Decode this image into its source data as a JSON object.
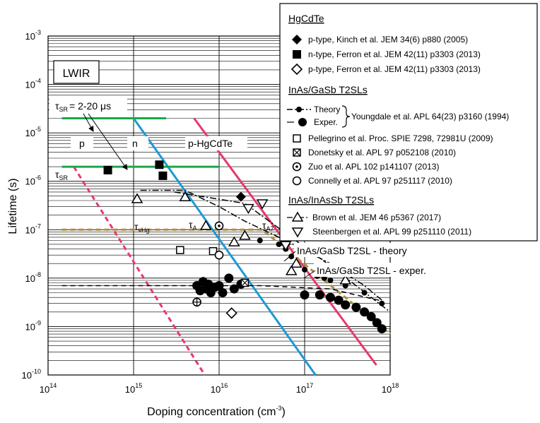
{
  "chart_data": {
    "type": "scatter",
    "title": "",
    "xlabel_main": "Doping concentration (cm",
    "xlabel_sup": "-3",
    "xlabel_close": ")",
    "ylabel": "Lifetime (s)",
    "xscale": "log",
    "yscale": "log",
    "xlim": [
      100000000000000.0,
      1e+18
    ],
    "ylim": [
      1e-10,
      0.001
    ],
    "grid": true,
    "legend_placement": "top-right",
    "x_ticks": [
      {
        "value": 100000000000000.0,
        "base": "10",
        "exp": "14"
      },
      {
        "value": 1000000000000000.0,
        "base": "10",
        "exp": "15"
      },
      {
        "value": 1e+16,
        "base": "10",
        "exp": "16"
      },
      {
        "value": 1e+17,
        "base": "10",
        "exp": "17"
      },
      {
        "value": 1e+18,
        "base": "10",
        "exp": "18"
      }
    ],
    "y_ticks": [
      {
        "value": 1e-10,
        "base": "10",
        "exp": "-10"
      },
      {
        "value": 1e-09,
        "base": "10",
        "exp": "-9"
      },
      {
        "value": 1e-08,
        "base": "10",
        "exp": "-8"
      },
      {
        "value": 1e-07,
        "base": "10",
        "exp": "-7"
      },
      {
        "value": 1e-06,
        "base": "10",
        "exp": "-6"
      },
      {
        "value": 1e-05,
        "base": "10",
        "exp": "-5"
      },
      {
        "value": 0.0001,
        "base": "10",
        "exp": "-4"
      },
      {
        "value": 0.001,
        "base": "10",
        "exp": "-3"
      }
    ],
    "colors": {
      "pink": "#e8386a",
      "blue": "#1b9ad6",
      "green": "#1aa64b",
      "tan": "#b08c3c",
      "black": "#000000"
    },
    "lines": [
      {
        "name": "tau-vHg",
        "color": "#e8386a",
        "style": "dashed",
        "x": [
          200000000000000.0,
          6800000000000000.0
        ],
        "y": [
          2e-06,
          1e-10
        ]
      },
      {
        "name": "tau-A",
        "color": "#1b9ad6",
        "style": "solid",
        "x": [
          1000000000000000.0,
          1.34e+17
        ],
        "y": [
          2e-05,
          1e-10
        ]
      },
      {
        "name": "tau-A7",
        "color": "#e8386a",
        "style": "solid",
        "x": [
          5100000000000000.0,
          6.9e+17
        ],
        "y": [
          2e-05,
          1.6e-10
        ]
      },
      {
        "name": "tau-SR-upper",
        "color": "#1aa64b",
        "style": "solid",
        "x": [
          145000000000000.0,
          2400000000000000.0
        ],
        "y": [
          2e-05,
          2e-05
        ]
      },
      {
        "name": "tau-SR-lower",
        "color": "#1aa64b",
        "style": "solid",
        "x": [
          145000000000000.0,
          1e+16
        ],
        "y": [
          2e-06,
          2e-06
        ]
      },
      {
        "name": "tan-dashed",
        "color": "#b08c3c",
        "style": "dashed",
        "x": [
          145000000000000.0,
          3.2e+16,
          1e+18
        ],
        "y": [
          1e-07,
          1e-07,
          7e-10
        ]
      },
      {
        "name": "black-dashed",
        "color": "#000000",
        "style": "dashed",
        "x": [
          145000000000000.0,
          3e+16,
          2e+17,
          6e+17,
          8e+17
        ],
        "y": [
          7e-09,
          7e-09,
          6e-09,
          3.8e-09,
          3.4e-09
        ]
      },
      {
        "name": "theory",
        "color": "#000000",
        "style": "dashdot",
        "x": [
          1200000000000000.0,
          4000000000000000.0,
          1e+16,
          2e+16,
          6e+16,
          2e+17,
          5e+17,
          8e+17
        ],
        "y": [
          6.5e-07,
          6.5e-07,
          3e-07,
          1.5e-07,
          6e-08,
          2e-08,
          7e-09,
          3.5e-09
        ]
      },
      {
        "name": "theory-2",
        "color": "#000000",
        "style": "dashdot",
        "x": [
          3000000000000000.0,
          2e+16,
          2e+17,
          1e+18
        ],
        "y": [
          6e-07,
          3.5e-07,
          1.8e-08,
          2e-09
        ]
      }
    ],
    "series": [
      {
        "marker": "diamond-filled",
        "points": [
          [
            1.8e+16,
            4.8e-07
          ],
          [
            6e+16,
            5e-08
          ]
        ]
      },
      {
        "marker": "square-filled",
        "points": [
          [
            500000000000000.0,
            1.7e-06
          ],
          [
            2000000000000000.0,
            2.2e-06
          ],
          [
            2200000000000000.0,
            1.3e-06
          ]
        ]
      },
      {
        "marker": "diamond-open",
        "points": [
          [
            1.4e+16,
            1.9e-09
          ]
        ]
      },
      {
        "marker": "dot-filled",
        "points": [
          [
            3e+16,
            6e-08
          ],
          [
            5e+16,
            5e-08
          ],
          [
            6e+16,
            4e-08
          ],
          [
            7e+16,
            2.8e-08
          ],
          [
            1e+17,
            1.5e-08
          ],
          [
            1.4e+17,
            1.1e-08
          ],
          [
            1.7e+17,
            1e-08
          ],
          [
            2e+17,
            9e-09
          ],
          [
            3e+17,
            7e-09
          ],
          [
            5e+17,
            5e-09
          ],
          [
            8e+17,
            3e-09
          ]
        ]
      },
      {
        "marker": "circle-filled",
        "points": [
          [
            5500000000000000.0,
            7e-09
          ],
          [
            6000000000000000.0,
            5.5e-09
          ],
          [
            6500000000000000.0,
            8.5e-09
          ],
          [
            7000000000000000.0,
            6e-09
          ],
          [
            7500000000000000.0,
            7.5e-09
          ],
          [
            8000000000000000.0,
            5e-09
          ],
          [
            9000000000000000.0,
            6.5e-09
          ],
          [
            1e+16,
            7e-09
          ],
          [
            1.1e+16,
            5e-09
          ],
          [
            1.3e+16,
            1e-08
          ],
          [
            1.5e+16,
            6e-09
          ],
          [
            1.8e+16,
            7.5e-09
          ],
          [
            1e+17,
            4.5e-09
          ],
          [
            1.5e+17,
            4.5e-09
          ],
          [
            2e+17,
            4e-09
          ],
          [
            2.5e+17,
            3.5e-09
          ],
          [
            3e+17,
            2.8e-09
          ],
          [
            4e+17,
            2.5e-09
          ],
          [
            5e+17,
            2e-09
          ],
          [
            6e+17,
            1.6e-09
          ],
          [
            7e+17,
            1.2e-09
          ],
          [
            8e+17,
            9e-10
          ]
        ]
      },
      {
        "marker": "square-open",
        "points": [
          [
            3500000000000000.0,
            3.8e-08
          ],
          [
            8500000000000000.0,
            3.6e-08
          ]
        ]
      },
      {
        "marker": "square-cross",
        "points": [
          [
            2e+16,
            8e-09
          ]
        ]
      },
      {
        "marker": "circle-dot",
        "points": [
          [
            1e+16,
            1.2e-07
          ]
        ]
      },
      {
        "marker": "circle-open",
        "points": [
          [
            1e+16,
            3e-08
          ]
        ]
      },
      {
        "marker": "circle-cross",
        "points": [
          [
            5500000000000000.0,
            3.2e-09
          ]
        ]
      },
      {
        "marker": "triangle-up-open",
        "points": [
          [
            1100000000000000.0,
            4.3e-07
          ],
          [
            4000000000000000.0,
            4.7e-07
          ],
          [
            7000000000000000.0,
            1.2e-07
          ],
          [
            1.5e+16,
            5.5e-08
          ],
          [
            2e+16,
            7.5e-08
          ],
          [
            7e+16,
            1.4e-08
          ],
          [
            8e+16,
            2e-08
          ],
          [
            3e+17,
            9e-09
          ]
        ]
      },
      {
        "marker": "triangle-down-open",
        "points": [
          [
            2.2e+16,
            2.8e-07
          ],
          [
            3.2e+16,
            3.5e-07
          ],
          [
            6e+16,
            4.8e-08
          ]
        ]
      }
    ],
    "annotations": {
      "lwir": "LWIR",
      "tau_sr_top_pre": "τ",
      "tau_sr_top_sub": "SR",
      "tau_sr_top_val": "= 2-20 μs",
      "tau_sr_pre": "τ",
      "tau_sr_sub": "SR",
      "p": "p",
      "n": "n",
      "p_hgcdte": "p-HgCdTe",
      "tau_vhg_pre": "τ",
      "tau_vhg_sub": "vHg",
      "tau_a_pre": "τ",
      "tau_a_sub": "A",
      "tau_a7_pre": "τ",
      "tau_a7_sub": "A7",
      "theory_label": "InAs/GaSb T2SL - theory",
      "exper_label": "InAs/GaSb T2SL - exper."
    },
    "legend": {
      "hgcdte_header": "HgCdTe",
      "hgcdte_items": [
        {
          "marker": "diamond-filled",
          "label": "p-type, Kinch et al. JEM 34(6) p880 (2005)"
        },
        {
          "marker": "square-filled",
          "label": "n-type, Ferron et al. JEM 42(11) p3303 (2013)"
        },
        {
          "marker": "diamond-open",
          "label": "p-type, Ferron et al. JEM  42(11) p3303 (2013)"
        }
      ],
      "inas_gasb_header": "InAs/GaSb T2SLs",
      "theory_label": "Theory",
      "exper_label": "Exper.",
      "youngdale_label": "Youngdale et al. APL 64(23) p3160 (1994)",
      "inas_gasb_items": [
        {
          "marker": "square-open",
          "label": "Pellegrino et al. Proc. SPIE 7298, 72981U (2009)"
        },
        {
          "marker": "square-cross",
          "label": "Donetsky et al. APL 97 p052108 (2010)"
        },
        {
          "marker": "circle-dot",
          "label": "Zuo et al. APL 102 p141107 (2013)"
        },
        {
          "marker": "circle-open",
          "label": "Connelly et al. APL 97 p251117 (2010)"
        }
      ],
      "inas_inassb_header": "InAs/InAsSb T2SLs",
      "inas_inassb_items": [
        {
          "marker": "triangle-up-open",
          "label": "Brown et al. JEM  46 p5367 (2017)"
        },
        {
          "marker": "triangle-down-open",
          "label": "Steenbergen et al. APL 99 p251110 (2011)"
        }
      ]
    }
  }
}
